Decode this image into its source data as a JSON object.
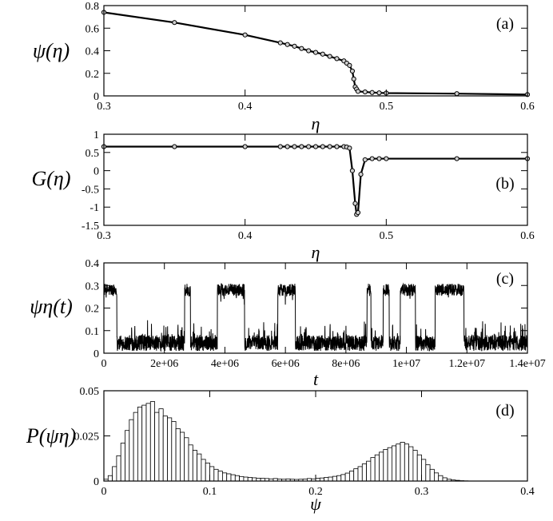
{
  "chart_data": [
    {
      "id": "a",
      "type": "line",
      "panel_label": "(a)",
      "ylabel": "ψ(η)",
      "xlabel": "η",
      "xlim": [
        0.3,
        0.6
      ],
      "ylim": [
        0,
        0.8
      ],
      "xticks": [
        0.3,
        0.4,
        0.5,
        0.6
      ],
      "xtick_labels": [
        "0.3",
        "0.4",
        "0.5",
        "0.6"
      ],
      "yticks": [
        0,
        0.2,
        0.4,
        0.6,
        0.8
      ],
      "ytick_labels": [
        "0",
        "0.2",
        "0.4",
        "0.6",
        "0.8"
      ],
      "grid": false,
      "series": [
        {
          "markers": "open-circle",
          "x": [
            0.3,
            0.35,
            0.4,
            0.425,
            0.43,
            0.435,
            0.44,
            0.445,
            0.45,
            0.455,
            0.46,
            0.465,
            0.47,
            0.472,
            0.474,
            0.476,
            0.477,
            0.478,
            0.479,
            0.48,
            0.485,
            0.49,
            0.495,
            0.5,
            0.55,
            0.6
          ],
          "y": [
            0.74,
            0.65,
            0.54,
            0.47,
            0.455,
            0.44,
            0.42,
            0.4,
            0.385,
            0.37,
            0.35,
            0.33,
            0.31,
            0.29,
            0.27,
            0.22,
            0.15,
            0.08,
            0.06,
            0.04,
            0.035,
            0.03,
            0.027,
            0.025,
            0.02,
            0.012
          ]
        }
      ]
    },
    {
      "id": "b",
      "type": "line",
      "panel_label": "(b)",
      "ylabel": "G(η)",
      "xlabel": "η",
      "xlim": [
        0.3,
        0.6
      ],
      "ylim": [
        -1.5,
        1
      ],
      "xticks": [
        0.3,
        0.4,
        0.5,
        0.6
      ],
      "xtick_labels": [
        "0.3",
        "0.4",
        "0.5",
        "0.6"
      ],
      "yticks": [
        -1.5,
        -1,
        -0.5,
        0,
        0.5,
        1
      ],
      "ytick_labels": [
        "-1.5",
        "-1",
        "-0.5",
        "0",
        "0.5",
        "1"
      ],
      "grid": false,
      "series": [
        {
          "markers": "open-circle",
          "x": [
            0.3,
            0.35,
            0.4,
            0.425,
            0.43,
            0.435,
            0.44,
            0.445,
            0.45,
            0.455,
            0.46,
            0.465,
            0.47,
            0.472,
            0.474,
            0.476,
            0.478,
            0.479,
            0.48,
            0.482,
            0.485,
            0.49,
            0.495,
            0.5,
            0.55,
            0.6
          ],
          "y": [
            0.66,
            0.66,
            0.66,
            0.66,
            0.66,
            0.66,
            0.66,
            0.66,
            0.66,
            0.66,
            0.66,
            0.66,
            0.66,
            0.65,
            0.62,
            0.0,
            -0.9,
            -1.2,
            -1.15,
            -0.1,
            0.3,
            0.33,
            0.33,
            0.33,
            0.33,
            0.33
          ]
        }
      ]
    },
    {
      "id": "c",
      "type": "line",
      "panel_label": "(c)",
      "ylabel": "ψη(t)",
      "xlabel": "t",
      "xlim": [
        0,
        14000000
      ],
      "ylim": [
        0,
        0.4
      ],
      "xticks": [
        0,
        2000000,
        4000000,
        6000000,
        8000000,
        10000000,
        12000000,
        14000000
      ],
      "xtick_labels": [
        "0",
        "2e+06",
        "4e+06",
        "6e+06",
        "8e+06",
        "1e+07",
        "1.2e+07",
        "1.4e+07"
      ],
      "yticks": [
        0,
        0.1,
        0.2,
        0.3,
        0.4
      ],
      "ytick_labels": [
        "0",
        "0.1",
        "0.2",
        "0.3",
        "0.4"
      ],
      "grid": false,
      "series": [
        {
          "style": "noisy time series",
          "high_state_level": 0.28,
          "low_state_level": 0.045,
          "high_intervals": [
            [
              0,
              430000
            ],
            [
              2670000,
              2860000
            ],
            [
              3750000,
              4650000
            ],
            [
              5750000,
              6330000
            ],
            [
              8700000,
              8830000
            ],
            [
              9230000,
              9430000
            ],
            [
              9800000,
              10300000
            ],
            [
              10950000,
              11900000
            ]
          ]
        }
      ]
    },
    {
      "id": "d",
      "type": "bar",
      "panel_label": "(d)",
      "ylabel": "P(ψη)",
      "xlabel": "ψ",
      "xlim": [
        0,
        0.4
      ],
      "ylim": [
        0,
        0.05
      ],
      "xticks": [
        0,
        0.1,
        0.2,
        0.3,
        0.4
      ],
      "xtick_labels": [
        "0",
        "0.1",
        "0.2",
        "0.3",
        "0.4"
      ],
      "yticks": [
        0,
        0.025,
        0.05
      ],
      "ytick_labels": [
        "0",
        "0.025",
        "0.05"
      ],
      "grid": false,
      "bin_width": 0.004,
      "series": [
        {
          "style": "open histogram",
          "bin_centers": [
            0.002,
            0.006,
            0.01,
            0.014,
            0.018,
            0.022,
            0.026,
            0.03,
            0.034,
            0.038,
            0.042,
            0.046,
            0.05,
            0.054,
            0.058,
            0.062,
            0.066,
            0.07,
            0.074,
            0.078,
            0.082,
            0.086,
            0.09,
            0.094,
            0.098,
            0.102,
            0.106,
            0.11,
            0.114,
            0.118,
            0.122,
            0.126,
            0.13,
            0.134,
            0.138,
            0.142,
            0.146,
            0.15,
            0.154,
            0.158,
            0.162,
            0.166,
            0.17,
            0.174,
            0.178,
            0.182,
            0.186,
            0.19,
            0.194,
            0.198,
            0.202,
            0.206,
            0.21,
            0.214,
            0.218,
            0.222,
            0.226,
            0.23,
            0.234,
            0.238,
            0.242,
            0.246,
            0.25,
            0.254,
            0.258,
            0.262,
            0.266,
            0.27,
            0.274,
            0.278,
            0.282,
            0.286,
            0.29,
            0.294,
            0.298,
            0.302,
            0.306,
            0.31,
            0.314,
            0.318,
            0.322,
            0.326,
            0.33,
            0.334,
            0.338,
            0.342
          ],
          "values": [
            0.001,
            0.003,
            0.008,
            0.014,
            0.021,
            0.028,
            0.034,
            0.038,
            0.041,
            0.042,
            0.043,
            0.044,
            0.038,
            0.04,
            0.036,
            0.035,
            0.033,
            0.029,
            0.027,
            0.024,
            0.02,
            0.017,
            0.015,
            0.012,
            0.01,
            0.008,
            0.0065,
            0.0055,
            0.0045,
            0.004,
            0.0035,
            0.003,
            0.0025,
            0.0022,
            0.002,
            0.0018,
            0.0016,
            0.0015,
            0.0014,
            0.0012,
            0.0014,
            0.0011,
            0.001,
            0.0012,
            0.001,
            0.0009,
            0.001,
            0.0011,
            0.0014,
            0.0012,
            0.0015,
            0.0017,
            0.002,
            0.0022,
            0.0026,
            0.003,
            0.0036,
            0.0044,
            0.0055,
            0.0068,
            0.008,
            0.0095,
            0.011,
            0.013,
            0.0145,
            0.016,
            0.0175,
            0.0185,
            0.0195,
            0.0205,
            0.0215,
            0.0205,
            0.019,
            0.017,
            0.0145,
            0.012,
            0.009,
            0.0065,
            0.0045,
            0.003,
            0.0018,
            0.001,
            0.0006,
            0.0004,
            0.0002,
            0.0001
          ]
        }
      ]
    }
  ]
}
